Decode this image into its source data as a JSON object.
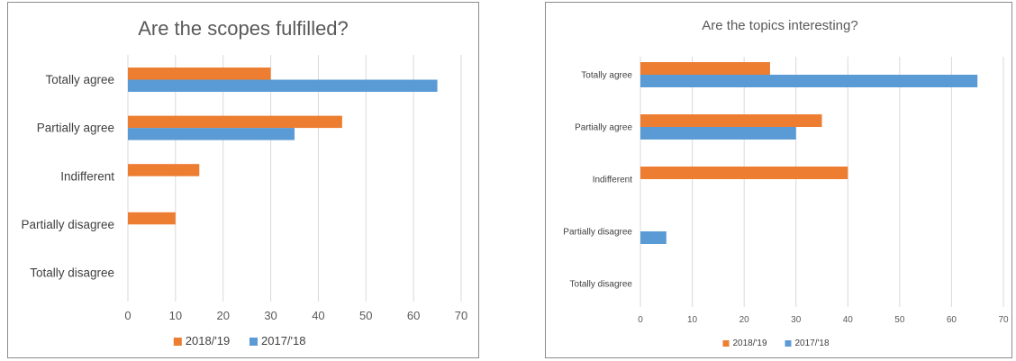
{
  "chart_data": [
    {
      "type": "bar",
      "orientation": "horizontal",
      "title": "Are the scopes fulfilled?",
      "categories": [
        "Totally agree",
        "Partially agree",
        "Indifferent",
        "Partially disagree",
        "Totally disagree"
      ],
      "series": [
        {
          "name": "2018/'19",
          "color": "#ED7D31",
          "values": [
            30,
            45,
            15,
            10,
            0
          ]
        },
        {
          "name": "2017/'18",
          "color": "#5B9BD5",
          "values": [
            65,
            35,
            0,
            0,
            0
          ]
        }
      ],
      "xlim": [
        0,
        70
      ],
      "xticks": [
        "0",
        "10",
        "20",
        "30",
        "40",
        "50",
        "60",
        "70"
      ],
      "grid": true,
      "legend_position": "bottom"
    },
    {
      "type": "bar",
      "orientation": "horizontal",
      "title": "Are the topics interesting?",
      "categories": [
        "Totally agree",
        "Partially agree",
        "Indifferent",
        "Partially disagree",
        "Totally disagree"
      ],
      "series": [
        {
          "name": "2018/'19",
          "color": "#ED7D31",
          "values": [
            25,
            35,
            40,
            0,
            0
          ]
        },
        {
          "name": "2017/'18",
          "color": "#5B9BD5",
          "values": [
            65,
            30,
            0,
            5,
            0
          ]
        }
      ],
      "xlim": [
        0,
        70
      ],
      "xticks": [
        "0",
        "10",
        "20",
        "30",
        "40",
        "50",
        "60",
        "70"
      ],
      "grid": true,
      "legend_position": "bottom"
    }
  ]
}
